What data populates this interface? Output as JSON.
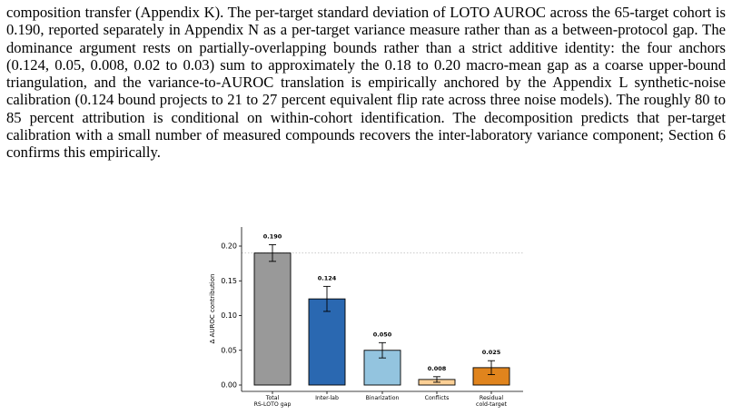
{
  "paragraph": "composition transfer (Appendix K). The per-target standard deviation of LOTO AUROC across the 65-target cohort is 0.190, reported separately in Appendix N as a per-target variance measure rather than as a between-protocol gap. The dominance argument rests on partially-overlapping bounds rather than a strict additive identity: the four anchors (0.124, 0.05, 0.008, 0.02 to 0.03) sum to approximately the 0.18 to 0.20 macro-mean gap as a coarse upper-bound triangulation, and the variance-to-AUROC translation is empirically anchored by the Appendix L synthetic-noise calibration (0.124 bound projects to 21 to 27 percent equivalent flip rate across three noise models). The roughly 80 to 85 percent attribution is conditional on within-cohort identification. The decomposition predicts that per-target calibration with a small number of measured compounds recovers the inter-laboratory variance component; Section 6 confirms this empirically.",
  "chart_data": {
    "type": "bar",
    "ylabel": "Δ AUROC contribution",
    "ylim": [
      -0.01,
      0.23
    ],
    "yticks": [
      0.0,
      0.05,
      0.1,
      0.15,
      0.2
    ],
    "ytick_labels": [
      "0.00",
      "0.05",
      "0.10",
      "0.15",
      "0.20"
    ],
    "reference_line": 0.19,
    "grid": false,
    "bars": [
      {
        "label": [
          "Total",
          "RS-LOTO gap"
        ],
        "value": 0.19,
        "value_label": "0.190",
        "err": 0.012,
        "color": "#999999"
      },
      {
        "label": [
          "Inter-lab"
        ],
        "value": 0.124,
        "value_label": "0.124",
        "err": 0.018,
        "color": "#2a68b1"
      },
      {
        "label": [
          "Binarization"
        ],
        "value": 0.05,
        "value_label": "0.050",
        "err": 0.011,
        "color": "#93c4df"
      },
      {
        "label": [
          "Conflicts"
        ],
        "value": 0.008,
        "value_label": "0.008",
        "err": 0.004,
        "color": "#fbcf95"
      },
      {
        "label": [
          "Residual",
          "cold-target"
        ],
        "value": 0.025,
        "value_label": "0.025",
        "err": 0.01,
        "color": "#e0841d"
      }
    ]
  }
}
